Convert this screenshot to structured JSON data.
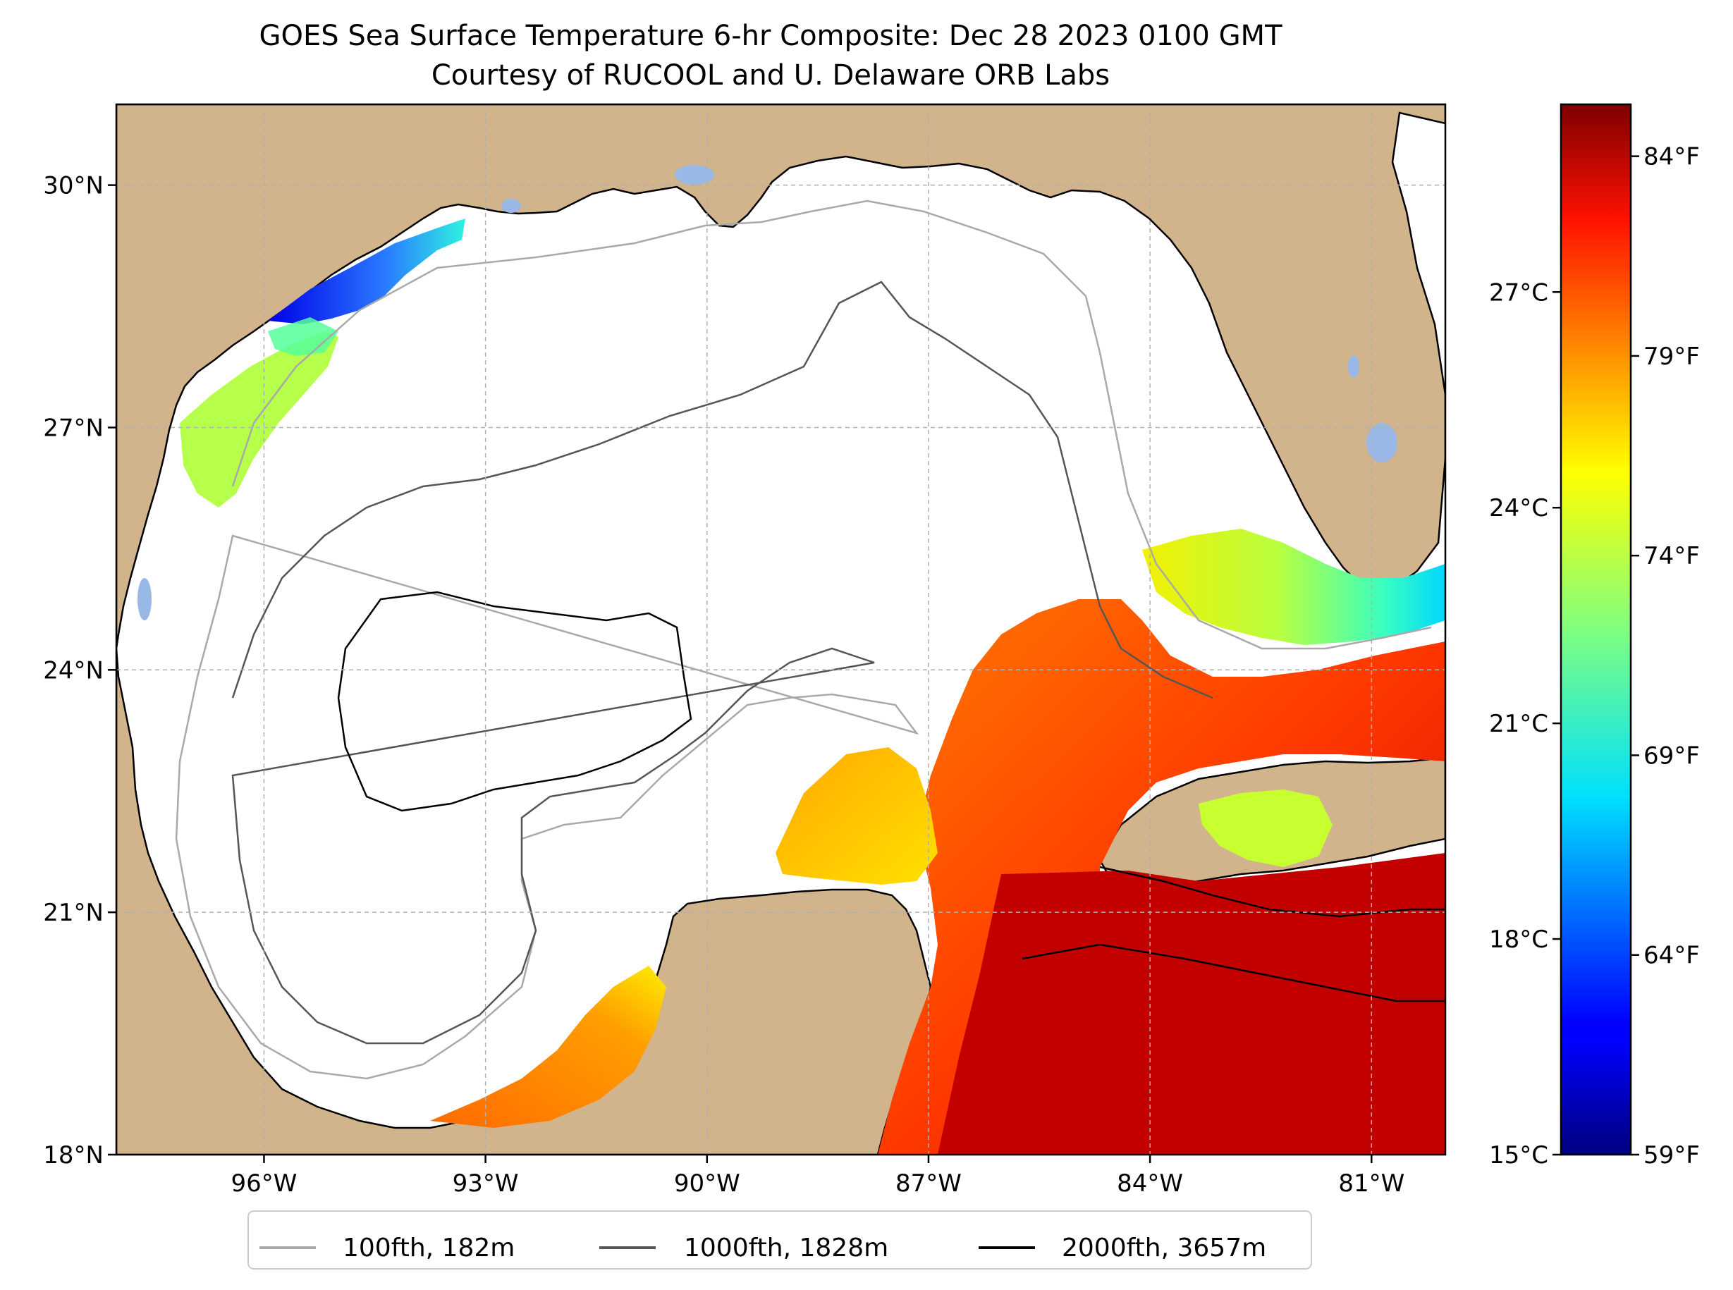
{
  "title": {
    "line1": "GOES Sea Surface Temperature 6-hr Composite: Dec 28 2023 0100 GMT",
    "line2": "Courtesy of RUCOOL and U. Delaware ORB Labs"
  },
  "map": {
    "extent": {
      "lon_min": -98.0,
      "lon_max": -80.0,
      "lat_min": 18.0,
      "lat_max": 31.0
    },
    "lat_ticks": [
      {
        "value": 30,
        "label": "30°N"
      },
      {
        "value": 27,
        "label": "27°N"
      },
      {
        "value": 24,
        "label": "24°N"
      },
      {
        "value": 21,
        "label": "21°N"
      },
      {
        "value": 18,
        "label": "18°N"
      }
    ],
    "lon_ticks": [
      {
        "value": -96,
        "label": "96°W"
      },
      {
        "value": -93,
        "label": "93°W"
      },
      {
        "value": -90,
        "label": "90°W"
      },
      {
        "value": -87,
        "label": "87°W"
      },
      {
        "value": -84,
        "label": "84°W"
      },
      {
        "value": -81,
        "label": "81°W"
      }
    ],
    "gridlines": "dashed",
    "colors": {
      "land": "#d2b48c",
      "ocean_no_data": "#ffffff",
      "lakes": "#9ab8e6"
    }
  },
  "colorbar": {
    "colormap": "jet",
    "celsius_ticks": [
      {
        "value": 27,
        "label": "27°C"
      },
      {
        "value": 24,
        "label": "24°C"
      },
      {
        "value": 21,
        "label": "21°C"
      },
      {
        "value": 18,
        "label": "18°C"
      },
      {
        "value": 15,
        "label": "15°C"
      }
    ],
    "fahrenheit_ticks": [
      {
        "value": 84,
        "label": "84°F"
      },
      {
        "value": 79,
        "label": "79°F"
      },
      {
        "value": 74,
        "label": "74°F"
      },
      {
        "value": 69,
        "label": "69°F"
      },
      {
        "value": 64,
        "label": "64°F"
      },
      {
        "value": 59,
        "label": "59°F"
      }
    ]
  },
  "legend": {
    "placement": "bottom-center",
    "items": [
      {
        "label": "100fth, 182m",
        "color": "#a9a9a9"
      },
      {
        "label": "1000fth, 1828m",
        "color": "#555555"
      },
      {
        "label": "2000fth, 3657m",
        "color": "#000000"
      }
    ]
  }
}
